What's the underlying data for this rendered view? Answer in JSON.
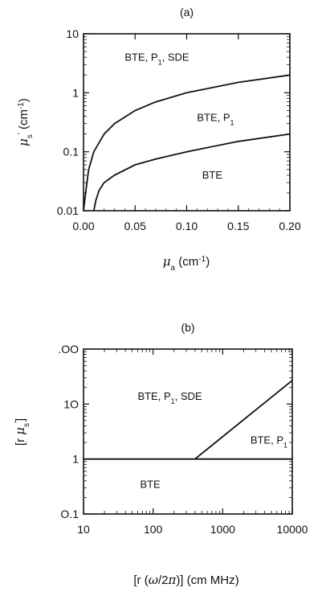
{
  "chart_data": [
    {
      "panel_label": "(a)",
      "type": "line",
      "xlabel": "μa (cm⁻¹)",
      "ylabel": "μs' (cm⁻¹)",
      "xlim": [
        0,
        0.2
      ],
      "ylim": [
        0.01,
        10
      ],
      "yscale": "log",
      "x_ticks": [
        "0.00",
        "0.05",
        "0.10",
        "0.15",
        "0.20"
      ],
      "y_ticks": [
        "0.01",
        "0.1",
        "1",
        "10"
      ],
      "series": [
        {
          "x": [
            0.0,
            0.002,
            0.005,
            0.01,
            0.02,
            0.03,
            0.05,
            0.07,
            0.1,
            0.15,
            0.2
          ],
          "y": [
            0.01,
            0.02,
            0.05,
            0.1,
            0.2,
            0.3,
            0.5,
            0.7,
            1.0,
            1.5,
            2.0
          ]
        },
        {
          "x": [
            0.01,
            0.012,
            0.015,
            0.02,
            0.03,
            0.05,
            0.07,
            0.1,
            0.15,
            0.2
          ],
          "y": [
            0.01,
            0.015,
            0.022,
            0.03,
            0.04,
            0.06,
            0.075,
            0.1,
            0.15,
            0.2
          ]
        }
      ],
      "annotations": [
        {
          "text": "BTE, P1, SDE",
          "x": 0.04,
          "y": 3.5
        },
        {
          "text": "BTE, P1",
          "x": 0.11,
          "y": 0.33
        },
        {
          "text": "BTE",
          "x": 0.115,
          "y": 0.035
        }
      ]
    },
    {
      "panel_label": "(b)",
      "type": "line",
      "xlabel": "[r (ω/2π)] (cm MHz)",
      "ylabel": "[r μs']",
      "xscale": "log",
      "yscale": "log",
      "xlim": [
        10,
        10000
      ],
      "ylim": [
        0.1,
        100
      ],
      "x_ticks": [
        "10",
        "100",
        "1000",
        "10000"
      ],
      "y_ticks": [
        "O.1",
        "1",
        "1O",
        ".OO"
      ],
      "series": [
        {
          "x": [
            10,
            10000
          ],
          "y": [
            1,
            1
          ]
        },
        {
          "x": [
            400,
            10000
          ],
          "y": [
            1,
            27
          ]
        }
      ],
      "annotations": [
        {
          "text": "BTE, P1, SDE",
          "x": 60,
          "y": 12
        },
        {
          "text": "BTE, P1",
          "x": 2500,
          "y": 1.9
        },
        {
          "text": "BTE",
          "x": 65,
          "y": 0.3
        }
      ]
    }
  ]
}
